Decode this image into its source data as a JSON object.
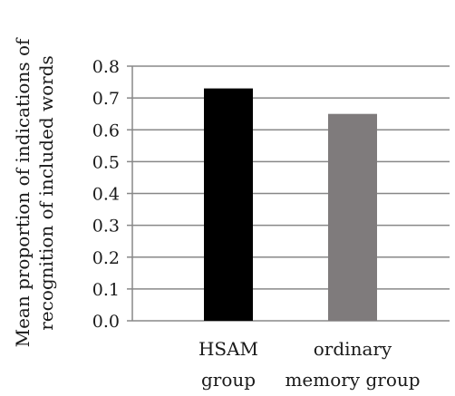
{
  "chart_data": {
    "type": "bar",
    "categories": [
      [
        "HSAM",
        "group"
      ],
      [
        "ordinary",
        "memory group"
      ]
    ],
    "values": [
      0.73,
      0.65
    ],
    "bar_colors": [
      "#000000",
      "#7f7b7c"
    ],
    "ylabel_lines": [
      "Mean proportion of indications of",
      "recognition of included words"
    ],
    "ylim": [
      0,
      0.8
    ],
    "yticks": [
      "0.0",
      "0.1",
      "0.2",
      "0.3",
      "0.4",
      "0.5",
      "0.6",
      "0.7",
      "0.8"
    ],
    "gridline_color": "#888888",
    "grid": true,
    "legend": "none"
  }
}
